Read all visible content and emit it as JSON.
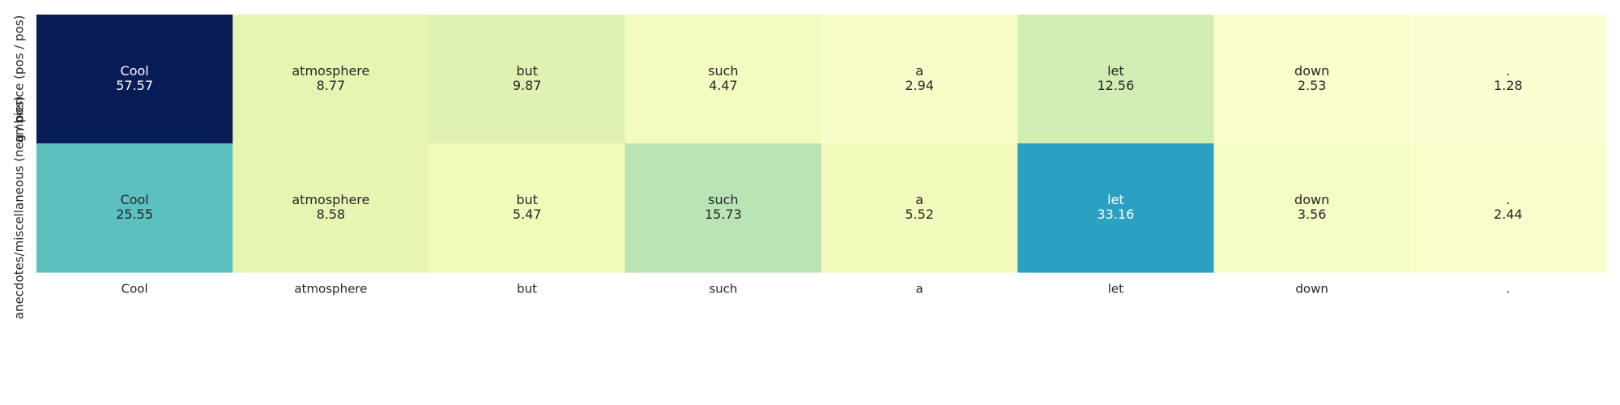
{
  "chart_data": {
    "type": "heatmap",
    "title": "",
    "xlabel": "",
    "ylabel": "",
    "x_tick_labels": [
      "Cool",
      "atmosphere",
      "but",
      "such",
      "a",
      "let",
      "down",
      "."
    ],
    "y_tick_labels": [
      "ambience (pos / pos)",
      "anecdotes/miscellaneous (neg / pos)"
    ],
    "rows": [
      {
        "label": "ambience (pos / pos)",
        "cells": [
          {
            "token": "Cool",
            "value": 57.57
          },
          {
            "token": "atmosphere",
            "value": 8.77
          },
          {
            "token": "but",
            "value": 9.87
          },
          {
            "token": "such",
            "value": 4.47
          },
          {
            "token": "a",
            "value": 2.94
          },
          {
            "token": "let",
            "value": 12.56
          },
          {
            "token": "down",
            "value": 2.53
          },
          {
            "token": ".",
            "value": 1.28
          }
        ]
      },
      {
        "label": "anecdotes/miscellaneous (neg / pos)",
        "cells": [
          {
            "token": "Cool",
            "value": 25.55
          },
          {
            "token": "atmosphere",
            "value": 8.58
          },
          {
            "token": "but",
            "value": 5.47
          },
          {
            "token": "such",
            "value": 15.73
          },
          {
            "token": "a",
            "value": 5.52
          },
          {
            "token": "let",
            "value": 33.16
          },
          {
            "token": "down",
            "value": 3.56
          },
          {
            "token": ".",
            "value": 2.44
          }
        ]
      }
    ],
    "value_range": [
      0,
      57.57
    ],
    "colormap": "YlGnBu",
    "colormap_stops": [
      "#ffffd9",
      "#edf8b1",
      "#c7e9b4",
      "#7fcdbb",
      "#41b6c4",
      "#1d91c0",
      "#225ea8",
      "#253494",
      "#081d58"
    ],
    "annotation_dark_text": "#262626",
    "annotation_light_text": "#ffffff",
    "tick_label_color": "#262626",
    "grid": false,
    "colorbar": false
  }
}
